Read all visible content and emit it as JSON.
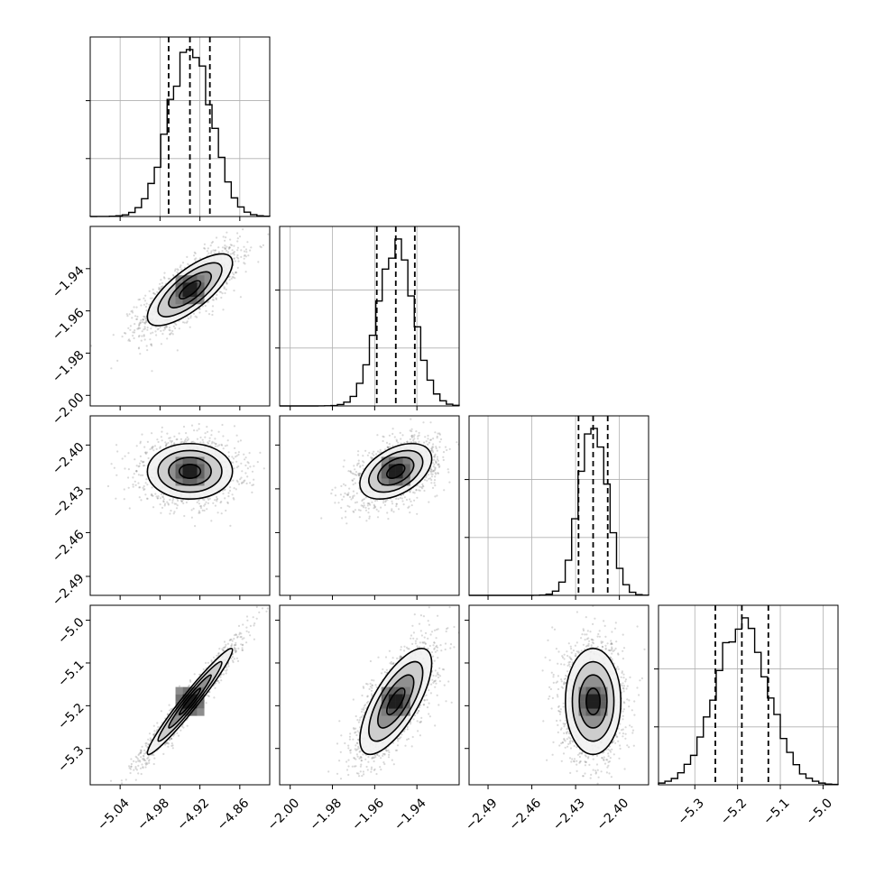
{
  "chart_data": {
    "type": "scatter",
    "title": "",
    "parameters": [
      {
        "mean": -4.935,
        "sd": 0.032,
        "range": [
          -5.085,
          -4.815
        ],
        "ticks": [
          -5.04,
          -4.98,
          -4.92,
          -4.86
        ],
        "tick_labels": [
          "−5.04",
          "−4.98",
          "−4.92",
          "−4.86"
        ],
        "quantiles": [
          -4.967,
          -4.935,
          -4.905
        ]
      },
      {
        "mean": -1.95,
        "sd": 0.0085,
        "range": [
          -2.005,
          -1.92
        ],
        "ticks": [
          -2.0,
          -1.98,
          -1.96,
          -1.94
        ],
        "tick_labels": [
          "−2.00",
          "−1.98",
          "−1.96",
          "−1.94"
        ],
        "quantiles": [
          -1.959,
          -1.95,
          -1.941
        ]
      },
      {
        "mean": -2.418,
        "sd": 0.0095,
        "range": [
          -2.503,
          -2.38
        ],
        "ticks": [
          -2.49,
          -2.46,
          -2.43,
          -2.4
        ],
        "tick_labels": [
          "−2.49",
          "−2.46",
          "−2.43",
          "−2.40"
        ],
        "quantiles": [
          -2.428,
          -2.418,
          -2.408
        ]
      },
      {
        "mean": -5.19,
        "sd": 0.062,
        "range": [
          -5.385,
          -4.965
        ],
        "ticks": [
          -5.3,
          -5.2,
          -5.1,
          -5.0
        ],
        "tick_labels": [
          "−5.3",
          "−5.2",
          "−5.1",
          "−5.0"
        ],
        "quantiles": [
          -5.252,
          -5.19,
          -5.128
        ]
      }
    ],
    "correlations": [
      {
        "pair": [
          0,
          1
        ],
        "rho": 0.75
      },
      {
        "pair": [
          0,
          2
        ],
        "rho": 0.0
      },
      {
        "pair": [
          1,
          2
        ],
        "rho": 0.45
      },
      {
        "pair": [
          0,
          3
        ],
        "rho": 0.97
      },
      {
        "pair": [
          1,
          3
        ],
        "rho": 0.72
      },
      {
        "pair": [
          2,
          3
        ],
        "rho": 0.0
      }
    ],
    "contour_levels_sigma": [
      0.5,
      1.0,
      1.5,
      2.0
    ],
    "grid": true,
    "legend": "none"
  }
}
